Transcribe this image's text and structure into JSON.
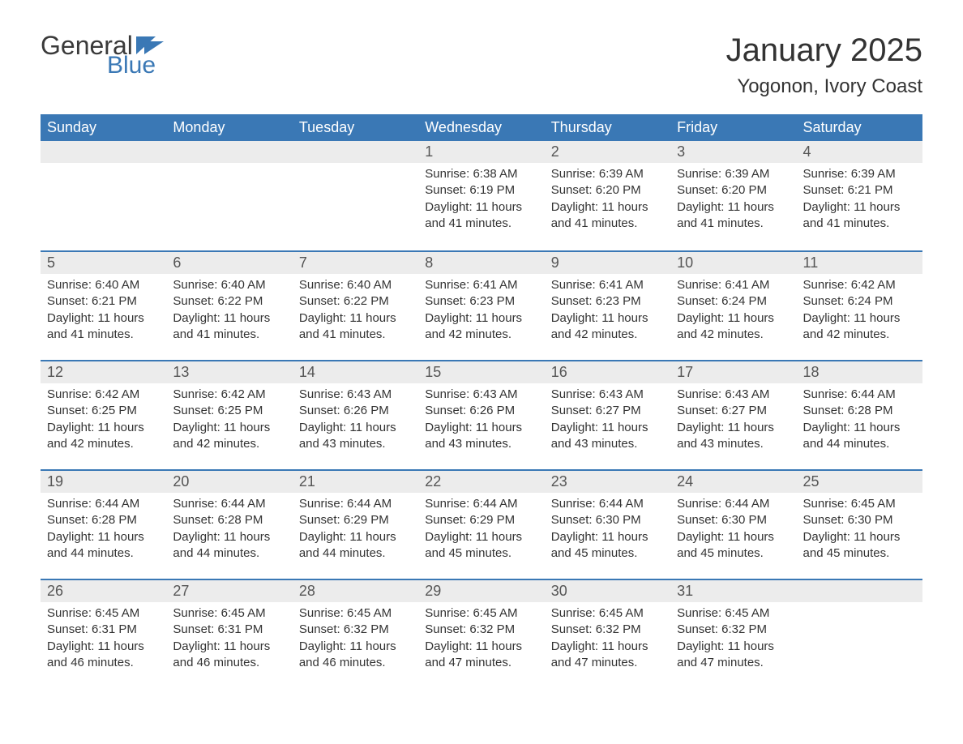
{
  "logo": {
    "text_general": "General",
    "text_blue": "Blue",
    "flag_color": "#3a78b5"
  },
  "header": {
    "month_title": "January 2025",
    "location": "Yogonon, Ivory Coast"
  },
  "styling": {
    "header_bg": "#3a78b5",
    "header_text": "#ffffff",
    "daynum_bg": "#ececec",
    "week_border": "#3a78b5",
    "body_text": "#333333",
    "title_fontsize": 40,
    "location_fontsize": 24,
    "weekday_fontsize": 18,
    "daynum_fontsize": 18,
    "body_fontsize": 15
  },
  "weekdays": [
    "Sunday",
    "Monday",
    "Tuesday",
    "Wednesday",
    "Thursday",
    "Friday",
    "Saturday"
  ],
  "labels": {
    "sunrise": "Sunrise:",
    "sunset": "Sunset:",
    "daylight": "Daylight:"
  },
  "weeks": [
    [
      null,
      null,
      null,
      {
        "day": "1",
        "sunrise": "6:38 AM",
        "sunset": "6:19 PM",
        "daylight": "11 hours and 41 minutes."
      },
      {
        "day": "2",
        "sunrise": "6:39 AM",
        "sunset": "6:20 PM",
        "daylight": "11 hours and 41 minutes."
      },
      {
        "day": "3",
        "sunrise": "6:39 AM",
        "sunset": "6:20 PM",
        "daylight": "11 hours and 41 minutes."
      },
      {
        "day": "4",
        "sunrise": "6:39 AM",
        "sunset": "6:21 PM",
        "daylight": "11 hours and 41 minutes."
      }
    ],
    [
      {
        "day": "5",
        "sunrise": "6:40 AM",
        "sunset": "6:21 PM",
        "daylight": "11 hours and 41 minutes."
      },
      {
        "day": "6",
        "sunrise": "6:40 AM",
        "sunset": "6:22 PM",
        "daylight": "11 hours and 41 minutes."
      },
      {
        "day": "7",
        "sunrise": "6:40 AM",
        "sunset": "6:22 PM",
        "daylight": "11 hours and 41 minutes."
      },
      {
        "day": "8",
        "sunrise": "6:41 AM",
        "sunset": "6:23 PM",
        "daylight": "11 hours and 42 minutes."
      },
      {
        "day": "9",
        "sunrise": "6:41 AM",
        "sunset": "6:23 PM",
        "daylight": "11 hours and 42 minutes."
      },
      {
        "day": "10",
        "sunrise": "6:41 AM",
        "sunset": "6:24 PM",
        "daylight": "11 hours and 42 minutes."
      },
      {
        "day": "11",
        "sunrise": "6:42 AM",
        "sunset": "6:24 PM",
        "daylight": "11 hours and 42 minutes."
      }
    ],
    [
      {
        "day": "12",
        "sunrise": "6:42 AM",
        "sunset": "6:25 PM",
        "daylight": "11 hours and 42 minutes."
      },
      {
        "day": "13",
        "sunrise": "6:42 AM",
        "sunset": "6:25 PM",
        "daylight": "11 hours and 42 minutes."
      },
      {
        "day": "14",
        "sunrise": "6:43 AM",
        "sunset": "6:26 PM",
        "daylight": "11 hours and 43 minutes."
      },
      {
        "day": "15",
        "sunrise": "6:43 AM",
        "sunset": "6:26 PM",
        "daylight": "11 hours and 43 minutes."
      },
      {
        "day": "16",
        "sunrise": "6:43 AM",
        "sunset": "6:27 PM",
        "daylight": "11 hours and 43 minutes."
      },
      {
        "day": "17",
        "sunrise": "6:43 AM",
        "sunset": "6:27 PM",
        "daylight": "11 hours and 43 minutes."
      },
      {
        "day": "18",
        "sunrise": "6:44 AM",
        "sunset": "6:28 PM",
        "daylight": "11 hours and 44 minutes."
      }
    ],
    [
      {
        "day": "19",
        "sunrise": "6:44 AM",
        "sunset": "6:28 PM",
        "daylight": "11 hours and 44 minutes."
      },
      {
        "day": "20",
        "sunrise": "6:44 AM",
        "sunset": "6:28 PM",
        "daylight": "11 hours and 44 minutes."
      },
      {
        "day": "21",
        "sunrise": "6:44 AM",
        "sunset": "6:29 PM",
        "daylight": "11 hours and 44 minutes."
      },
      {
        "day": "22",
        "sunrise": "6:44 AM",
        "sunset": "6:29 PM",
        "daylight": "11 hours and 45 minutes."
      },
      {
        "day": "23",
        "sunrise": "6:44 AM",
        "sunset": "6:30 PM",
        "daylight": "11 hours and 45 minutes."
      },
      {
        "day": "24",
        "sunrise": "6:44 AM",
        "sunset": "6:30 PM",
        "daylight": "11 hours and 45 minutes."
      },
      {
        "day": "25",
        "sunrise": "6:45 AM",
        "sunset": "6:30 PM",
        "daylight": "11 hours and 45 minutes."
      }
    ],
    [
      {
        "day": "26",
        "sunrise": "6:45 AM",
        "sunset": "6:31 PM",
        "daylight": "11 hours and 46 minutes."
      },
      {
        "day": "27",
        "sunrise": "6:45 AM",
        "sunset": "6:31 PM",
        "daylight": "11 hours and 46 minutes."
      },
      {
        "day": "28",
        "sunrise": "6:45 AM",
        "sunset": "6:32 PM",
        "daylight": "11 hours and 46 minutes."
      },
      {
        "day": "29",
        "sunrise": "6:45 AM",
        "sunset": "6:32 PM",
        "daylight": "11 hours and 47 minutes."
      },
      {
        "day": "30",
        "sunrise": "6:45 AM",
        "sunset": "6:32 PM",
        "daylight": "11 hours and 47 minutes."
      },
      {
        "day": "31",
        "sunrise": "6:45 AM",
        "sunset": "6:32 PM",
        "daylight": "11 hours and 47 minutes."
      },
      null
    ]
  ]
}
